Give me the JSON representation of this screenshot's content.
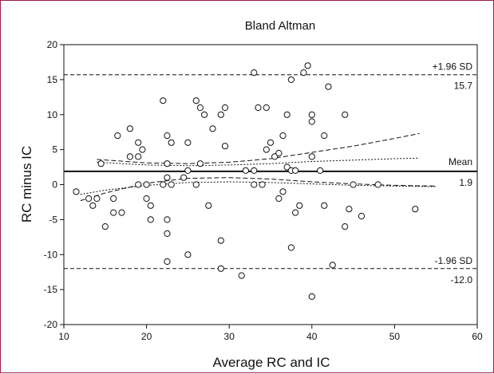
{
  "chart_data": {
    "type": "scatter",
    "title": "Bland Altman",
    "xlabel": "Average RC and IC",
    "ylabel": "RC minus IC",
    "xlim": [
      10,
      60
    ],
    "ylim": [
      -20,
      20
    ],
    "xticks": [
      10,
      20,
      30,
      40,
      50,
      60
    ],
    "yticks": [
      -20,
      -15,
      -10,
      -5,
      0,
      5,
      10,
      15,
      20
    ],
    "grid": false,
    "colors": {
      "frame": "#9d1c4a",
      "ink": "#111111"
    },
    "lines": {
      "mean": {
        "y": 1.9,
        "style": "solid",
        "label": "Mean",
        "value_label": "1.9"
      },
      "upper": {
        "y": 15.7,
        "style": "dashed",
        "label": "+1.96 SD",
        "value_label": "15.7"
      },
      "lower": {
        "y": -12.0,
        "style": "dashed",
        "label": "-1.96 SD",
        "value_label": "-12.0"
      }
    },
    "ci_curves": [
      {
        "name": "",
        "x": [
          14,
          20,
          25,
          30,
          35,
          40,
          45,
          50,
          53
        ],
        "y": [
          3.6,
          3.1,
          3.0,
          3.2,
          3.7,
          4.6,
          5.5,
          6.6,
          7.3
        ]
      },
      {
        "name": "",
        "x": [
          14,
          20,
          25,
          30,
          35,
          40,
          45,
          50,
          53
        ],
        "y": [
          3.2,
          2.8,
          2.7,
          2.8,
          3.0,
          3.3,
          3.5,
          3.7,
          3.8
        ]
      },
      {
        "name": "",
        "x": [
          12,
          15,
          20,
          25,
          30,
          35,
          40,
          45,
          50,
          55
        ],
        "y": [
          -2.3,
          -1.2,
          0.2,
          0.9,
          1.0,
          0.8,
          0.4,
          0.1,
          -0.1,
          -0.2
        ]
      },
      {
        "name": "",
        "x": [
          12,
          15,
          20,
          25,
          30,
          35,
          40,
          45,
          50,
          55
        ],
        "y": [
          -1.4,
          -0.8,
          -0.1,
          0.3,
          0.4,
          0.3,
          0.1,
          -0.1,
          -0.2,
          -0.3
        ]
      }
    ],
    "points": [
      [
        11.5,
        -1
      ],
      [
        13,
        -2
      ],
      [
        13.5,
        -3
      ],
      [
        14,
        -2
      ],
      [
        14.5,
        3
      ],
      [
        15,
        -6
      ],
      [
        16,
        -2
      ],
      [
        16,
        -4
      ],
      [
        16.5,
        7
      ],
      [
        17,
        -4
      ],
      [
        18,
        4
      ],
      [
        18,
        8
      ],
      [
        19,
        0
      ],
      [
        19,
        6
      ],
      [
        19,
        4
      ],
      [
        19.5,
        5
      ],
      [
        20,
        0
      ],
      [
        20,
        -2
      ],
      [
        20.5,
        -3
      ],
      [
        20.5,
        -5
      ],
      [
        22,
        12
      ],
      [
        22,
        0
      ],
      [
        22.5,
        7
      ],
      [
        22.5,
        3
      ],
      [
        22.5,
        1
      ],
      [
        22.5,
        -5
      ],
      [
        22.5,
        -7
      ],
      [
        22.5,
        -11
      ],
      [
        23,
        6
      ],
      [
        23,
        0
      ],
      [
        24.5,
        1
      ],
      [
        25,
        6
      ],
      [
        25,
        2
      ],
      [
        25,
        -10
      ],
      [
        26,
        12
      ],
      [
        26,
        0
      ],
      [
        26.5,
        11
      ],
      [
        26.5,
        3
      ],
      [
        27,
        10
      ],
      [
        27.5,
        -3
      ],
      [
        28,
        8
      ],
      [
        29,
        10
      ],
      [
        29,
        -8
      ],
      [
        29,
        -12
      ],
      [
        29.5,
        11
      ],
      [
        29.5,
        5.5
      ],
      [
        31.5,
        -13
      ],
      [
        32,
        2
      ],
      [
        33,
        16
      ],
      [
        33,
        2
      ],
      [
        33,
        0
      ],
      [
        33.5,
        11
      ],
      [
        34,
        0
      ],
      [
        34.5,
        11
      ],
      [
        34.5,
        5
      ],
      [
        35,
        6
      ],
      [
        35.5,
        4
      ],
      [
        36,
        -2
      ],
      [
        36,
        4.5
      ],
      [
        36.5,
        -1
      ],
      [
        36.5,
        7
      ],
      [
        37,
        10
      ],
      [
        37,
        2.5
      ],
      [
        37.5,
        2
      ],
      [
        37.5,
        -9
      ],
      [
        37.5,
        15
      ],
      [
        38,
        -4
      ],
      [
        38,
        2
      ],
      [
        38.5,
        -3
      ],
      [
        39,
        16
      ],
      [
        39.5,
        17
      ],
      [
        40,
        10
      ],
      [
        40,
        9
      ],
      [
        40,
        4
      ],
      [
        40,
        -16
      ],
      [
        41,
        2
      ],
      [
        41.5,
        -3
      ],
      [
        41.5,
        7
      ],
      [
        42,
        14
      ],
      [
        42.5,
        -11.5
      ],
      [
        44,
        -6
      ],
      [
        44,
        10
      ],
      [
        44.5,
        -3.5
      ],
      [
        45,
        0
      ],
      [
        46,
        -4.5
      ],
      [
        48,
        0
      ],
      [
        52.5,
        -3.5
      ]
    ]
  }
}
